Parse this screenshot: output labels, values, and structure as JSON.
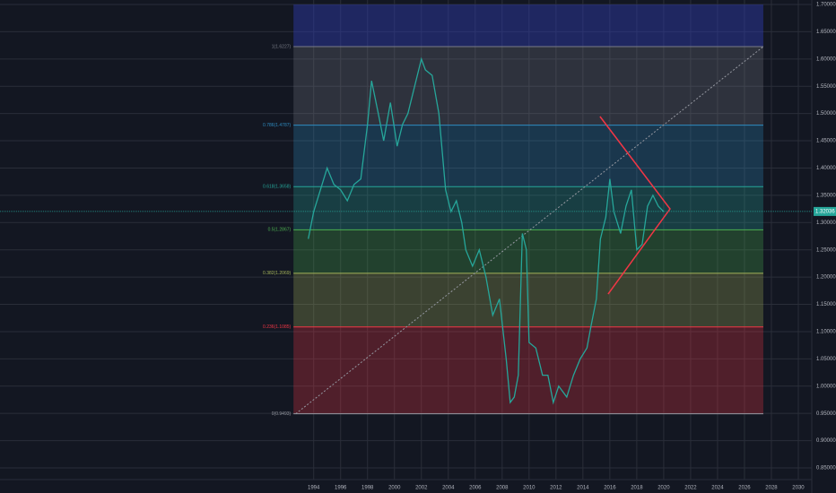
{
  "chart_data": {
    "type": "line",
    "x": [
      1993.6,
      1994,
      1994.5,
      1995,
      1995.5,
      1996,
      1996.5,
      1997,
      1997.5,
      1998,
      1998.3,
      1998.8,
      1999.2,
      1999.7,
      2000.2,
      2000.6,
      2001,
      2001.5,
      2002,
      2002.3,
      2002.8,
      2003.3,
      2003.8,
      2004.2,
      2004.6,
      2005,
      2005.3,
      2005.8,
      2006.3,
      2006.8,
      2007.3,
      2007.8,
      2008.3,
      2008.6,
      2008.9,
      2009.2,
      2009.5,
      2009.8,
      2010,
      2010.5,
      2011,
      2011.4,
      2011.8,
      2012.2,
      2012.8,
      2013.3,
      2013.8,
      2014.3,
      2014.6,
      2015,
      2015.3,
      2015.7,
      2016,
      2016.3,
      2016.8,
      2017.2,
      2017.6,
      2018,
      2018.4,
      2018.8,
      2019.2,
      2019.6,
      2020
    ],
    "series": [
      {
        "color": "#26a69a",
        "values": [
          1.27,
          1.32,
          1.36,
          1.4,
          1.37,
          1.36,
          1.34,
          1.37,
          1.38,
          1.48,
          1.56,
          1.5,
          1.45,
          1.52,
          1.44,
          1.48,
          1.5,
          1.55,
          1.6,
          1.58,
          1.57,
          1.5,
          1.36,
          1.32,
          1.34,
          1.3,
          1.25,
          1.22,
          1.25,
          1.2,
          1.13,
          1.16,
          1.05,
          0.97,
          0.98,
          1.02,
          1.28,
          1.25,
          1.08,
          1.07,
          1.02,
          1.02,
          0.97,
          1.0,
          0.98,
          1.02,
          1.05,
          1.07,
          1.11,
          1.16,
          1.27,
          1.31,
          1.38,
          1.32,
          1.28,
          1.33,
          1.36,
          1.25,
          1.26,
          1.33,
          1.35,
          1.33,
          1.32
        ]
      }
    ],
    "xlim": [
      1970.7,
      2031
    ],
    "ylim": [
      0.85,
      1.7
    ],
    "xticks": [
      1994,
      1996,
      1998,
      2000,
      2002,
      2004,
      2006,
      2008,
      2010,
      2012,
      2014,
      2016,
      2018,
      2020,
      2022,
      2024,
      2026,
      2028,
      2030
    ],
    "yticks": [
      {
        "value": 0.85,
        "label": "0.85000"
      },
      {
        "value": 0.9,
        "label": "0.90000"
      },
      {
        "value": 0.95,
        "label": "0.95000"
      },
      {
        "value": 1.0,
        "label": "1.00000"
      },
      {
        "value": 1.05,
        "label": "1.05000"
      },
      {
        "value": 1.1,
        "label": "1.10000"
      },
      {
        "value": 1.15,
        "label": "1.15000"
      },
      {
        "value": 1.2,
        "label": "1.20000"
      },
      {
        "value": 1.25,
        "label": "1.25000"
      },
      {
        "value": 1.3,
        "label": "1.30000"
      },
      {
        "value": 1.35,
        "label": "1.35000"
      },
      {
        "value": 1.4,
        "label": "1.40000"
      },
      {
        "value": 1.45,
        "label": "1.45000"
      },
      {
        "value": 1.5,
        "label": "1.50000"
      },
      {
        "value": 1.55,
        "label": "1.55000"
      },
      {
        "value": 1.6,
        "label": "1.60000"
      },
      {
        "value": 1.65,
        "label": "1.65000"
      },
      {
        "value": 1.7,
        "label": "1.70000"
      }
    ],
    "grid": true,
    "fib_range": [
      1992.5,
      2027.4
    ],
    "fib_levels": [
      {
        "label": "0(0.9493)",
        "value": 0.9493,
        "color": "#9598a1"
      },
      {
        "label": "0.236(1.1085)",
        "value": 1.1085,
        "color": "#f23645"
      },
      {
        "label": "0.382(1.2069)",
        "value": 1.2069,
        "color": "#a5b45a"
      },
      {
        "label": "0.5(1.2867)",
        "value": 1.2867,
        "color": "#4caf50"
      },
      {
        "label": "0.618(1.3658)",
        "value": 1.3658,
        "color": "#26a69a"
      },
      {
        "label": "0.786(1.4787)",
        "value": 1.4787,
        "color": "#2e8bc0"
      },
      {
        "label": "1(1.6227)",
        "value": 1.6227,
        "color": "#787b86"
      }
    ],
    "top_zone_color": "#2f3bb0",
    "trend_lines": [
      {
        "color": "#f23645",
        "x": [
          2015.27,
          2020.47,
          2015.87
        ],
        "y": [
          1.4945,
          1.3251,
          1.1689
        ]
      },
      {
        "color": "#9598a1",
        "x": [
          1992.67,
          2027.4
        ],
        "y": [
          0.9493,
          1.6227
        ]
      }
    ],
    "last_price": {
      "value": 1.32036,
      "label": "1.32036"
    }
  }
}
